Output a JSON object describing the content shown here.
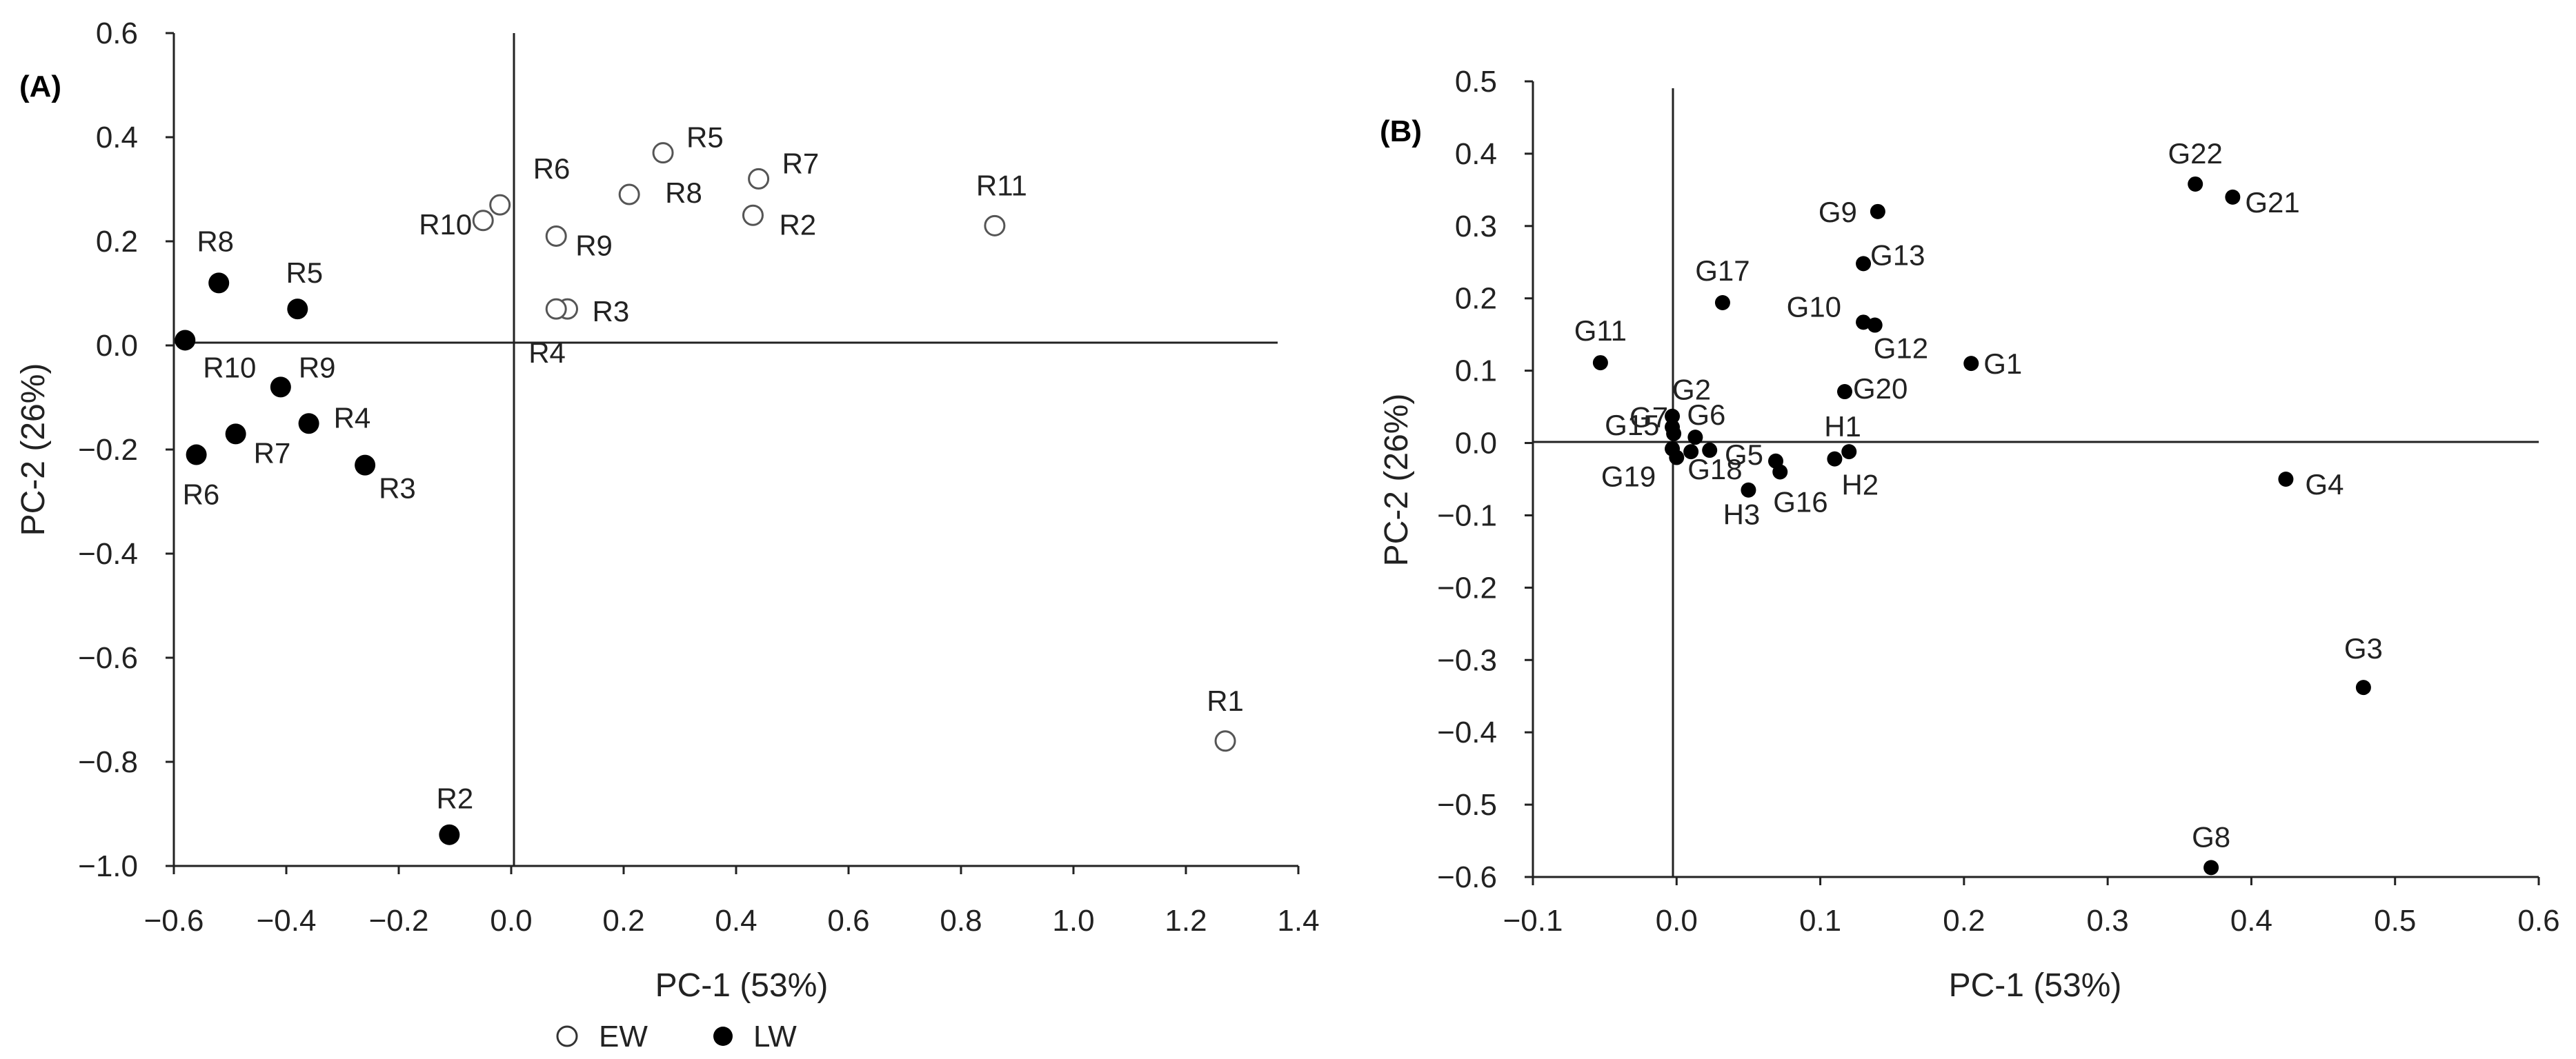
{
  "chart_data": [
    {
      "panel_label": "(A)",
      "type": "scatter",
      "xlabel": "PC-1 (53%)",
      "ylabel": "PC-2 (26%)",
      "xlim": [
        -0.6,
        1.4
      ],
      "ylim": [
        -1.0,
        0.6
      ],
      "x_ticks": [
        -0.6,
        -0.4,
        -0.2,
        0.0,
        0.2,
        0.4,
        0.6,
        0.8,
        1.0,
        1.2,
        1.4
      ],
      "x_tick_labels": [
        "−0.6",
        "−0.4",
        "−0.2",
        "0.0",
        "0.2",
        "0.4",
        "0.6",
        "0.8",
        "1.0",
        "1.2",
        "1.4"
      ],
      "y_ticks": [
        0.6,
        0.4,
        0.2,
        0.0,
        -0.2,
        -0.4,
        -0.6,
        -0.8,
        -1.0
      ],
      "y_tick_labels": [
        "0.6",
        "0.4",
        "0.2",
        "0.0",
        "−0.2",
        "−0.4",
        "−0.6",
        "−0.8",
        "−1.0"
      ],
      "grid": false,
      "legend_placement": "bottom-center",
      "series": [
        {
          "name": "EW",
          "marker": "open-circle",
          "points": [
            {
              "label": "R1",
              "x": 1.27,
              "y": -0.76
            },
            {
              "label": "R2",
              "x": 0.43,
              "y": 0.25
            },
            {
              "label": "R3",
              "x": 0.1,
              "y": 0.07
            },
            {
              "label": "R4",
              "x": 0.08,
              "y": 0.07
            },
            {
              "label": "R5",
              "x": 0.27,
              "y": 0.37
            },
            {
              "label": "R6",
              "x": -0.02,
              "y": 0.27
            },
            {
              "label": "R7",
              "x": 0.44,
              "y": 0.32
            },
            {
              "label": "R8",
              "x": 0.21,
              "y": 0.29
            },
            {
              "label": "R9",
              "x": 0.08,
              "y": 0.21
            },
            {
              "label": "R10",
              "x": -0.05,
              "y": 0.24
            },
            {
              "label": "R11",
              "x": 0.86,
              "y": 0.23
            }
          ]
        },
        {
          "name": "LW",
          "marker": "filled-circle",
          "points": [
            {
              "label": "R2",
              "x": -0.11,
              "y": -0.94
            },
            {
              "label": "R3",
              "x": -0.26,
              "y": -0.23
            },
            {
              "label": "R4",
              "x": -0.36,
              "y": -0.15
            },
            {
              "label": "R5",
              "x": -0.38,
              "y": 0.07
            },
            {
              "label": "R6",
              "x": -0.56,
              "y": -0.21
            },
            {
              "label": "R7",
              "x": -0.49,
              "y": -0.17
            },
            {
              "label": "R8",
              "x": -0.52,
              "y": 0.12
            },
            {
              "label": "R9",
              "x": -0.41,
              "y": -0.08
            },
            {
              "label": "R10",
              "x": -0.58,
              "y": 0.01
            }
          ]
        }
      ],
      "legend": [
        {
          "name": "EW",
          "marker": "open-circle"
        },
        {
          "name": "LW",
          "marker": "filled-circle"
        }
      ]
    },
    {
      "panel_label": "(B)",
      "type": "scatter",
      "xlabel": "PC-1 (53%)",
      "ylabel": "PC-2 (26%)",
      "xlim": [
        -0.1,
        0.6
      ],
      "ylim": [
        -0.6,
        0.5
      ],
      "x_ticks": [
        -0.1,
        0.0,
        0.1,
        0.2,
        0.3,
        0.4,
        0.5,
        0.6
      ],
      "x_tick_labels": [
        "−0.1",
        "0.0",
        "0.1",
        "0.2",
        "0.3",
        "0.4",
        "0.5",
        "0.6"
      ],
      "y_ticks": [
        0.5,
        0.4,
        0.3,
        0.2,
        0.1,
        0.0,
        -0.1,
        -0.2,
        -0.3,
        -0.4,
        -0.5,
        -0.6
      ],
      "y_tick_labels": [
        "0.5",
        "0.4",
        "0.3",
        "0.2",
        "0.1",
        "0.0",
        "−0.1",
        "−0.2",
        "−0.3",
        "−0.4",
        "−0.5",
        "−0.6"
      ],
      "grid": false,
      "series": [
        {
          "marker": "filled-circle-small",
          "points": [
            {
              "label": "G1",
              "x": 0.205,
              "y": 0.11
            },
            {
              "label": "G2",
              "x": -0.003,
              "y": 0.037
            },
            {
              "label": "G3",
              "x": 0.478,
              "y": -0.338
            },
            {
              "label": "G4",
              "x": 0.424,
              "y": -0.05
            },
            {
              "label": "G5",
              "x": 0.069,
              "y": -0.025
            },
            {
              "label": "G6",
              "x": 0.013,
              "y": 0.008
            },
            {
              "label": "G7",
              "x": -0.003,
              "y": 0.022
            },
            {
              "label": "G8",
              "x": 0.372,
              "y": -0.587
            },
            {
              "label": "G9",
              "x": 0.14,
              "y": 0.32
            },
            {
              "label": "G10",
              "x": 0.13,
              "y": 0.167
            },
            {
              "label": "G11",
              "x": -0.053,
              "y": 0.111
            },
            {
              "label": "G12",
              "x": 0.138,
              "y": 0.163
            },
            {
              "label": "G13",
              "x": 0.13,
              "y": 0.248
            },
            {
              "label": "G15",
              "x": -0.002,
              "y": 0.013
            },
            {
              "label": "G16",
              "x": 0.072,
              "y": -0.04
            },
            {
              "label": "G17",
              "x": 0.032,
              "y": 0.194
            },
            {
              "label": "G18",
              "x": 0.023,
              "y": -0.01
            },
            {
              "label": "G19",
              "x": 0.0,
              "y": -0.02
            },
            {
              "label": "G20",
              "x": 0.117,
              "y": 0.071
            },
            {
              "label": "G21",
              "x": 0.387,
              "y": 0.34
            },
            {
              "label": "G22",
              "x": 0.361,
              "y": 0.358
            },
            {
              "label": "H1",
              "x": 0.12,
              "y": -0.012
            },
            {
              "label": "H2",
              "x": 0.11,
              "y": -0.022
            },
            {
              "label": "H3",
              "x": 0.05,
              "y": -0.065
            },
            {
              "label": "",
              "x": 0.01,
              "y": -0.012
            },
            {
              "label": "",
              "x": -0.003,
              "y": -0.008
            }
          ]
        }
      ]
    }
  ]
}
